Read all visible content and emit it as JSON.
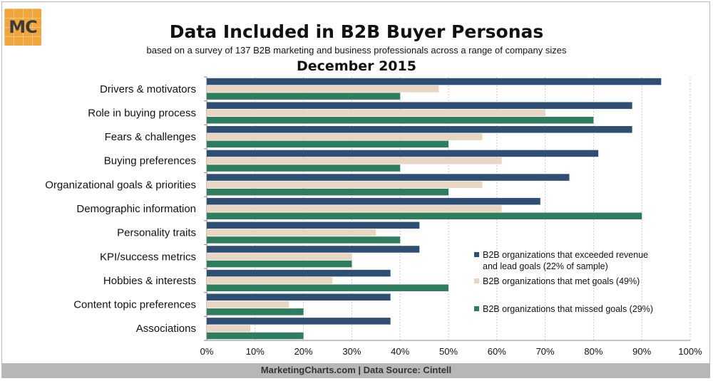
{
  "header": {
    "logo_text": "MC",
    "title": "Data Included in B2B Buyer Personas",
    "subtitle": "based on a survey of 137 B2B marketing and business professionals across a range of company sizes",
    "date": "December 2015"
  },
  "footer": {
    "text": "MarketingCharts.com | Data Source: Cintell"
  },
  "colors": {
    "exceeded": "#2e4e74",
    "met": "#e8d5c2",
    "missed": "#2e7d5e",
    "grid": "#c8c8c8",
    "logo": "#f0a63a"
  },
  "chart_data": {
    "type": "bar",
    "orientation": "horizontal",
    "title": "Data Included in B2B Buyer Personas",
    "categories": [
      "Drivers & motivators",
      "Role in buying process",
      "Fears & challenges",
      "Buying preferences",
      "Organizational goals & priorities",
      "Demographic information",
      "Personality traits",
      "KPI/success metrics",
      "Hobbies & interests",
      "Content topic preferences",
      "Associations"
    ],
    "series": [
      {
        "name": "B2B organizations that exceeded revenue and lead goals (22% of sample)",
        "legend_lines": [
          "B2B organizations that exceeded revenue",
          "and lead goals (22% of sample)"
        ],
        "color": "#2e4e74",
        "values": [
          94,
          88,
          88,
          81,
          75,
          69,
          44,
          44,
          38,
          38,
          38
        ]
      },
      {
        "name": "B2B organizations that met goals (49%)",
        "legend_lines": [
          "B2B organizations that met goals (49%)"
        ],
        "color": "#e8d5c2",
        "values": [
          48,
          70,
          57,
          61,
          57,
          61,
          35,
          30,
          26,
          17,
          9
        ]
      },
      {
        "name": "B2B organizations that missed goals (29%)",
        "legend_lines": [
          "B2B organizations that missed goals (29%)"
        ],
        "color": "#2e7d5e",
        "values": [
          40,
          80,
          50,
          40,
          50,
          90,
          40,
          30,
          50,
          20,
          20
        ]
      }
    ],
    "xlim": [
      0,
      100
    ],
    "xticks": [
      "0%",
      "10%",
      "20%",
      "30%",
      "40%",
      "50%",
      "60%",
      "70%",
      "80%",
      "90%",
      "100%"
    ],
    "grid": true,
    "legend_position": "bottom-right"
  }
}
